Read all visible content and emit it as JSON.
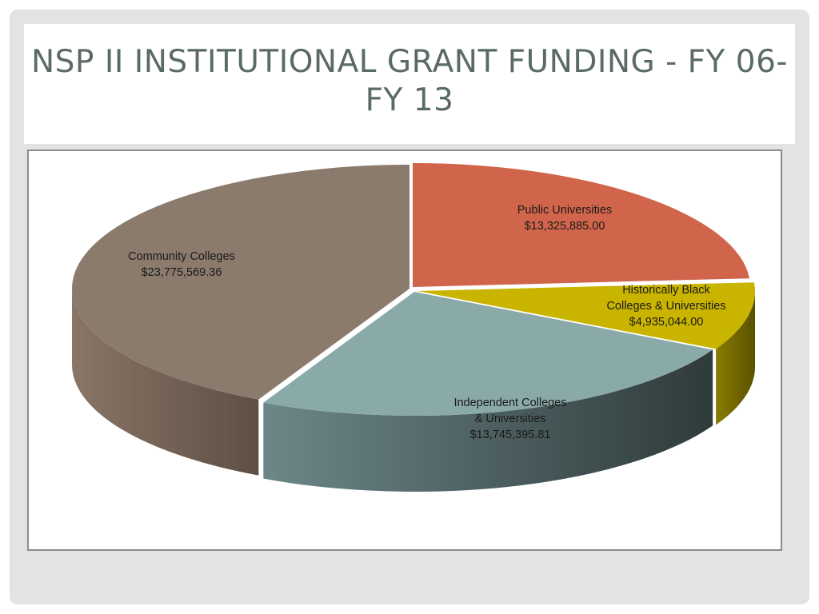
{
  "slide": {
    "title": "NSP II INSTITUTIONAL GRANT FUNDING - FY 06- FY 13"
  },
  "chart_data": {
    "type": "pie",
    "title": "",
    "slices": [
      {
        "key": "public",
        "label_lines": [
          "Public Universities",
          "$13,325,885.00"
        ],
        "value": 13325885.0,
        "color": "#d1654b"
      },
      {
        "key": "hbcu",
        "label_lines": [
          "Historically Black",
          "Colleges & Universities",
          "$4,935,044.00"
        ],
        "value": 4935044.0,
        "color": "#c9b400"
      },
      {
        "key": "independent",
        "label_lines": [
          "Independent Colleges",
          "& Universities",
          "$13,745,395.81"
        ],
        "value": 13745395.81,
        "color": "#8aaaaa"
      },
      {
        "key": "community",
        "label_lines": [
          "Community Colleges",
          "$23,775,569.36"
        ],
        "value": 23775569.36,
        "color": "#8b7b6d"
      }
    ],
    "legend": "none",
    "style": "3d-exploded"
  }
}
